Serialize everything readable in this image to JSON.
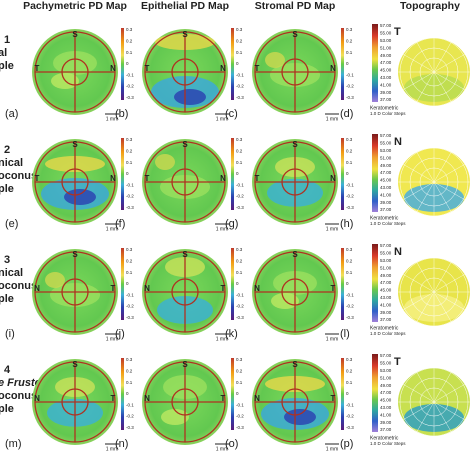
{
  "columns": [
    "Pachymetric PD Map",
    "Epithelial PD Map",
    "Stromal PD Map",
    "Topography"
  ],
  "rows": [
    {
      "label": [
        "1",
        "al",
        "ple"
      ],
      "panels": [
        "(a)",
        "(b)",
        "(c)",
        "(d)"
      ],
      "left": "T",
      "right": "N",
      "topo_mark": "T"
    },
    {
      "label": [
        "2",
        "nical",
        "oconus",
        "ple"
      ],
      "panels": [
        "(e)",
        "(f)",
        "(g)",
        "(h)"
      ],
      "left": "T",
      "right": "N",
      "topo_mark": "N"
    },
    {
      "label": [
        "3",
        "nical",
        "oconus",
        "ple"
      ],
      "panels": [
        "(i)",
        "(j)",
        "(k)",
        "(l)"
      ],
      "left": "N",
      "right": "T",
      "topo_mark": "N"
    },
    {
      "label": [
        "4",
        "e Fruste",
        "oconus",
        "ple"
      ],
      "panels": [
        "(m)",
        "(n)",
        "(o)",
        "(p)"
      ],
      "left": "N",
      "right": "T",
      "topo_mark": "T"
    }
  ],
  "top_label": "S",
  "scale_bar": "1 mm",
  "pd_colorbar": [
    "0.3",
    "0.2",
    "0.1",
    "0",
    "-0.1",
    "-0.2",
    "-0.3"
  ],
  "topo_colorbar": [
    "57.00",
    "55.00",
    "53.00",
    "51.00",
    "49.00",
    "47.00",
    "45.00",
    "43.00",
    "41.00",
    "39.00",
    "37.00"
  ],
  "topo_caption": [
    "Keratometric",
    "1.0 D Color Steps"
  ]
}
